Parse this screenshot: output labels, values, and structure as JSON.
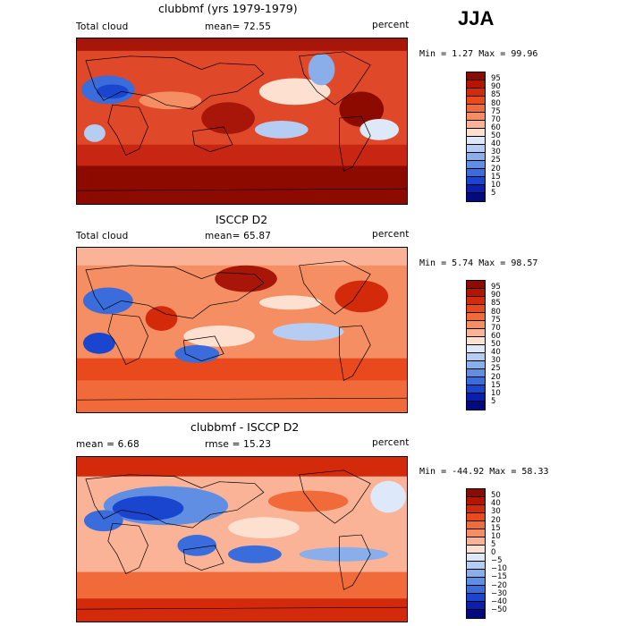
{
  "season": "JJA",
  "chart_data": [
    {
      "type": "heatmap",
      "title": "clubbmf (yrs 1979-1979)",
      "left_label": "Total cloud",
      "mean_label": "mean=  72.55",
      "units": "percent",
      "minmax": "Min =    1.27 Max =   99.96",
      "colorbar": {
        "levels": [
          "95",
          "90",
          "85",
          "80",
          "75",
          "70",
          "60",
          "50",
          "40",
          "30",
          "25",
          "20",
          "15",
          "10",
          "5"
        ],
        "colors": [
          "#8c0a00",
          "#b51400",
          "#d42a0c",
          "#e84a1e",
          "#f06a3a",
          "#f58e62",
          "#fab396",
          "#fde0d0",
          "#dde8f8",
          "#b5cdf2",
          "#8aaeea",
          "#5f8ee3",
          "#3a6ddb",
          "#1a46cf",
          "#0a1fb0",
          "#000b80"
        ]
      }
    },
    {
      "type": "heatmap",
      "title": "ISCCP D2",
      "left_label": "Total cloud",
      "mean_label": "mean=  65.87",
      "units": "percent",
      "minmax": "Min =    5.74 Max =   98.57",
      "colorbar": {
        "levels": [
          "95",
          "90",
          "85",
          "80",
          "75",
          "70",
          "60",
          "50",
          "40",
          "30",
          "25",
          "20",
          "15",
          "10",
          "5"
        ],
        "colors": [
          "#8c0a00",
          "#b51400",
          "#d42a0c",
          "#e84a1e",
          "#f06a3a",
          "#f58e62",
          "#fab396",
          "#fde0d0",
          "#dde8f8",
          "#b5cdf2",
          "#8aaeea",
          "#5f8ee3",
          "#3a6ddb",
          "#1a46cf",
          "#0a1fb0",
          "#000b80"
        ]
      }
    },
    {
      "type": "heatmap",
      "title": "clubbmf - ISCCP D2",
      "left_label": "mean =    6.68",
      "mean_label": "rmse =   15.23",
      "units": "percent",
      "minmax": "Min = -44.92 Max =   58.33",
      "colorbar": {
        "levels": [
          "50",
          "40",
          "30",
          "20",
          "15",
          "10",
          "5",
          "0",
          "−5",
          "−10",
          "−15",
          "−20",
          "−30",
          "−40",
          "−50"
        ],
        "colors": [
          "#8c0a00",
          "#b51400",
          "#d42a0c",
          "#e84a1e",
          "#f06a3a",
          "#f58e62",
          "#fab396",
          "#fde0d0",
          "#dde8f8",
          "#b5cdf2",
          "#8aaeea",
          "#5f8ee3",
          "#3a6ddb",
          "#1a46cf",
          "#0a1fb0",
          "#000b80"
        ]
      }
    }
  ]
}
